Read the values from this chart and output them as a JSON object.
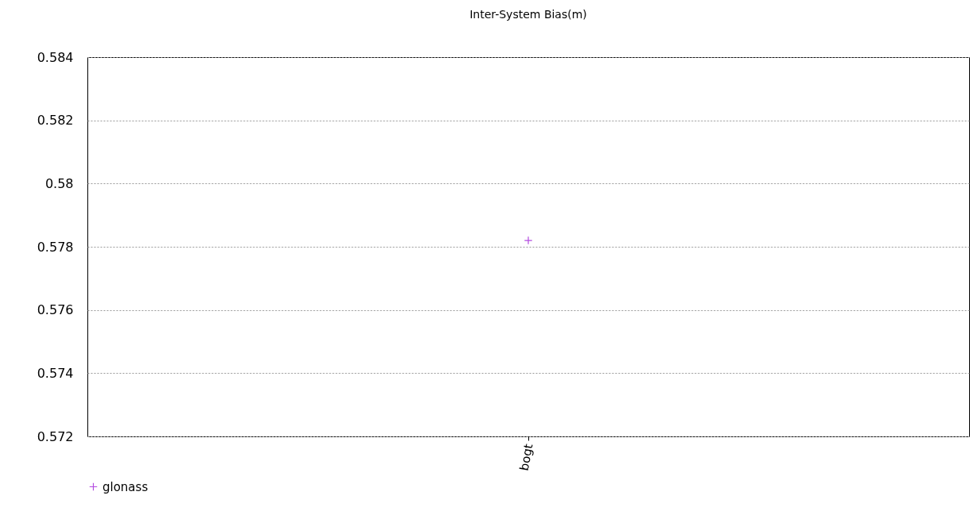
{
  "chart_data": {
    "type": "scatter",
    "title": "Inter-System Bias(m)",
    "categories": [
      "bogt"
    ],
    "series": [
      {
        "name": "glonass",
        "color": "#9400d3",
        "values": [
          0.5782
        ]
      }
    ],
    "ylim": [
      0.572,
      0.584
    ],
    "yticks": [
      0.572,
      0.574,
      0.576,
      0.578,
      0.58,
      0.582,
      0.584
    ],
    "grid": "y",
    "legend": "bottom",
    "marker": "cross"
  }
}
